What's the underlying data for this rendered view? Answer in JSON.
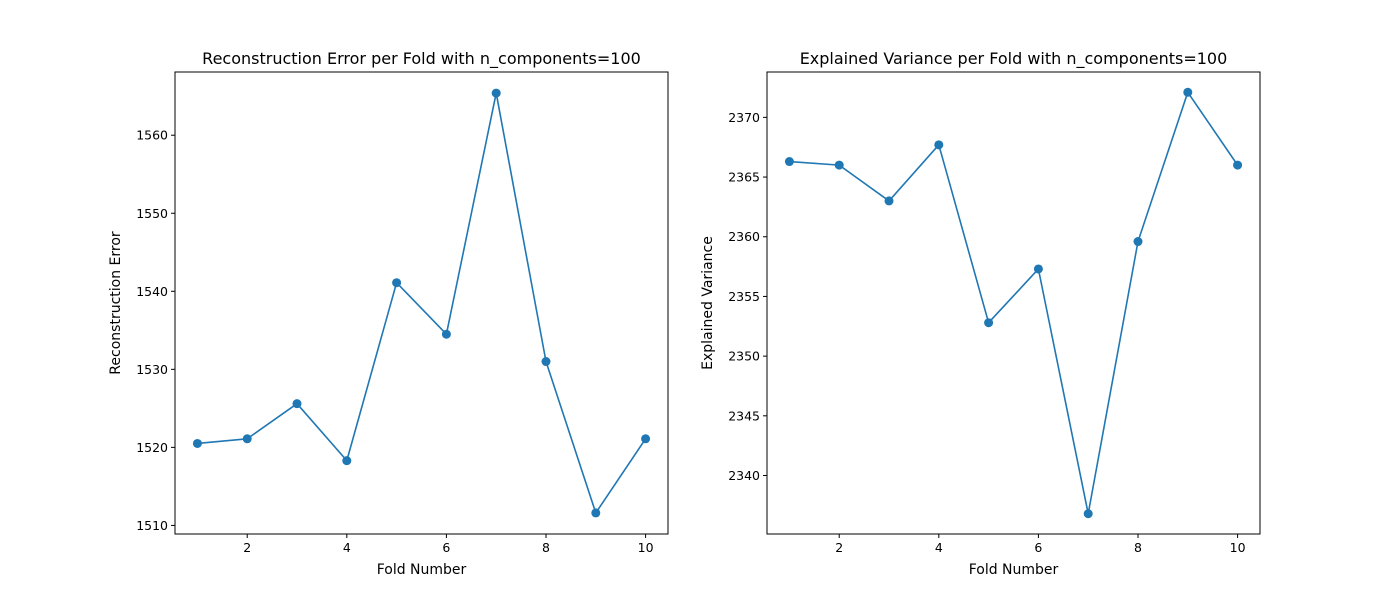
{
  "chart_data": [
    {
      "type": "line",
      "title": "Reconstruction Error per Fold with n_components=100",
      "xlabel": "Fold Number",
      "ylabel": "Reconstruction Error",
      "x": [
        1,
        2,
        3,
        4,
        5,
        6,
        7,
        8,
        9,
        10
      ],
      "series": [
        {
          "values": [
            1520.5,
            1521.1,
            1525.6,
            1518.3,
            1541.1,
            1534.5,
            1565.4,
            1531.0,
            1511.6,
            1521.1
          ],
          "color": "#1f77b4",
          "marker": "circle"
        }
      ],
      "xlim": [
        0.55,
        10.45
      ],
      "ylim": [
        1508.9,
        1568.1
      ],
      "xticks": [
        2,
        4,
        6,
        8,
        10
      ],
      "yticks": [
        1510,
        1520,
        1530,
        1540,
        1550,
        1560
      ],
      "grid": false
    },
    {
      "type": "line",
      "title": "Explained Variance per Fold with n_components=100",
      "xlabel": "Fold Number",
      "ylabel": "Explained Variance",
      "x": [
        1,
        2,
        3,
        4,
        5,
        6,
        7,
        8,
        9,
        10
      ],
      "series": [
        {
          "values": [
            2366.3,
            2366.0,
            2363.0,
            2367.7,
            2352.8,
            2357.3,
            2336.8,
            2359.6,
            2372.1,
            2366.0
          ],
          "color": "#1f77b4",
          "marker": "circle"
        }
      ],
      "xlim": [
        0.55,
        10.45
      ],
      "ylim": [
        2335.1,
        2373.8
      ],
      "xticks": [
        2,
        4,
        6,
        8,
        10
      ],
      "yticks": [
        2340,
        2345,
        2350,
        2355,
        2360,
        2365,
        2370
      ],
      "grid": false
    }
  ]
}
